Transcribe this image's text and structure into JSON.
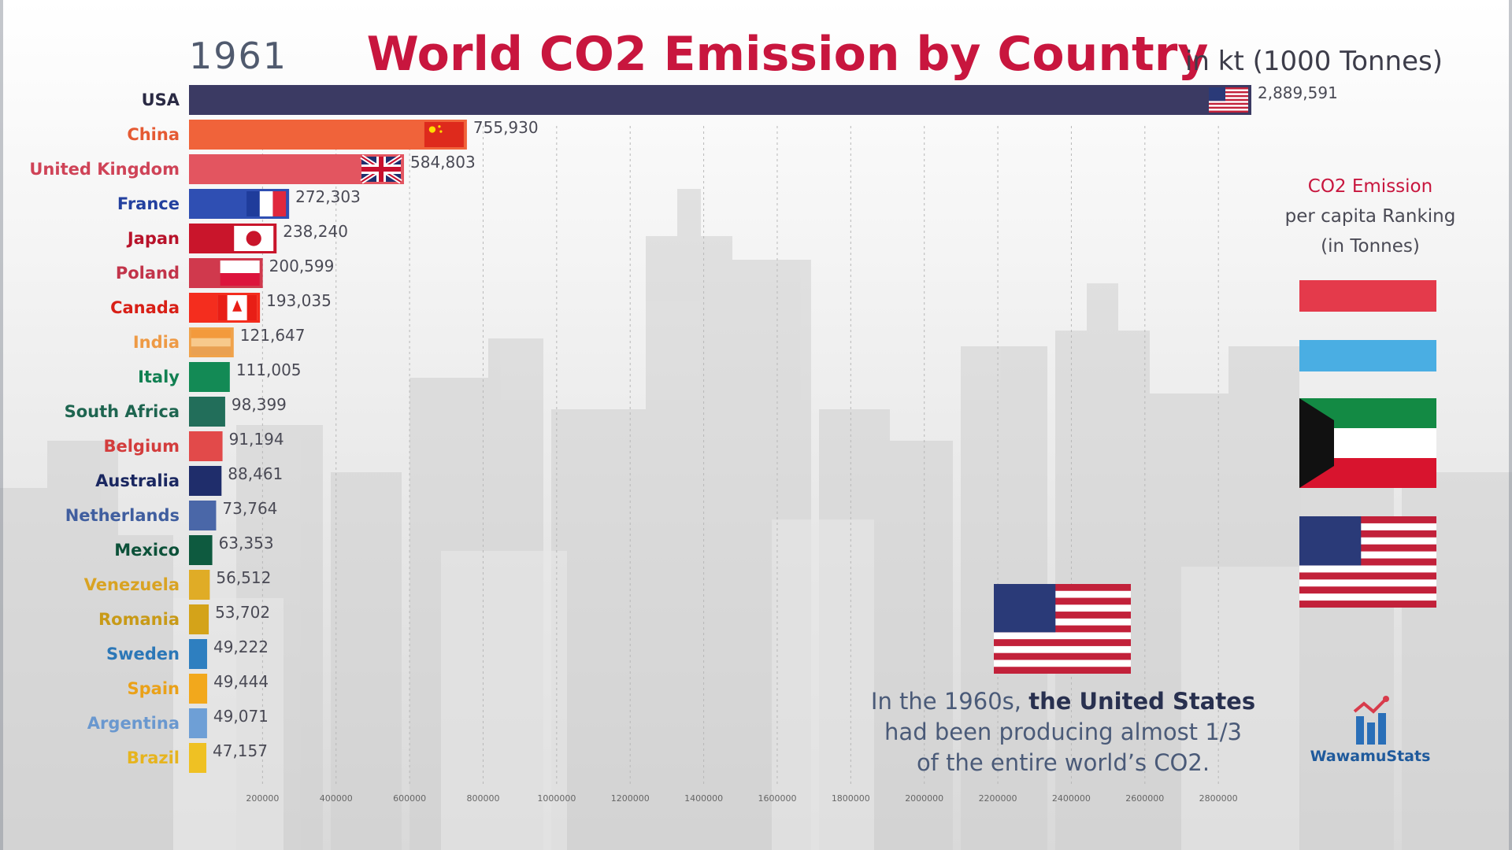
{
  "header": {
    "year": "1961",
    "title": "World CO2 Emission by Country",
    "unit": "in kt (1000 Tonnes)"
  },
  "side_panel": {
    "line1": "CO2 Emission",
    "line2": "per capita Ranking",
    "line3": "(in Tonnes)",
    "flags": [
      "red-white",
      "light-blue-white",
      "kuwait",
      "usa"
    ]
  },
  "note": {
    "part1": "In the 1960s, ",
    "part2": "the United States",
    "part3": "had been producing almost 1/3",
    "part4": "of the entire world’s CO2."
  },
  "brand": {
    "name": "WawamuStats"
  },
  "colors": {
    "title": "#c8163e",
    "usa_bar": "#3b3a63"
  },
  "chart_data": {
    "type": "bar",
    "orientation": "horizontal",
    "xlim": [
      0,
      2889591
    ],
    "x_ticks": [
      200000,
      400000,
      600000,
      800000,
      1000000,
      1200000,
      1400000,
      1600000,
      1800000,
      2000000,
      2200000,
      2400000,
      2600000,
      2800000
    ],
    "categories": [
      "USA",
      "China",
      "United Kingdom",
      "France",
      "Japan",
      "Poland",
      "Canada",
      "India",
      "Italy",
      "South Africa",
      "Belgium",
      "Australia",
      "Netherlands",
      "Mexico",
      "Venezuela",
      "Romania",
      "Sweden",
      "Spain",
      "Argentina",
      "Brazil"
    ],
    "values": [
      2889591,
      755930,
      584803,
      272303,
      238240,
      200599,
      193035,
      121647,
      111005,
      98399,
      91194,
      88461,
      73764,
      63353,
      56512,
      53702,
      49222,
      49444,
      49071,
      47157
    ],
    "value_labels": [
      "2,889,591",
      "755,930",
      "584,803",
      "272,303",
      "238,240",
      "200,599",
      "193,035",
      "121,647",
      "111,005",
      "98,399",
      "91,194",
      "88,461",
      "73,764",
      "63,353",
      "56,512",
      "53,702",
      "49,222",
      "49,444",
      "49,071",
      "47,157"
    ],
    "bar_colors": [
      "#3b3a63",
      "#f0633a",
      "#e35560",
      "#2f4fb3",
      "#c9152b",
      "#d0394d",
      "#f42d1e",
      "#f0a24a",
      "#138a55",
      "#226e5a",
      "#e24a4a",
      "#1f2d6b",
      "#4a67a8",
      "#0e5a3f",
      "#e0ac26",
      "#d4a319",
      "#2e7fc0",
      "#f2a81c",
      "#6e9fd6",
      "#efc123"
    ],
    "label_colors": [
      "#2a2a44",
      "#e55a33",
      "#cf4357",
      "#23409f",
      "#b8122a",
      "#c2344a",
      "#d81f16",
      "#ee9a45",
      "#118052",
      "#1e6550",
      "#d33c3c",
      "#1a2760",
      "#405e9f",
      "#0c5139",
      "#d9a323",
      "#c89a17",
      "#2b77b7",
      "#eaa118",
      "#6a98cf",
      "#e6b41e"
    ],
    "flags": [
      "usa",
      "china",
      "uk",
      "france",
      "japan",
      "poland",
      "canada",
      "india",
      "",
      "",
      "",
      "",
      "",
      "",
      "",
      "",
      "",
      "",
      "",
      ""
    ]
  }
}
